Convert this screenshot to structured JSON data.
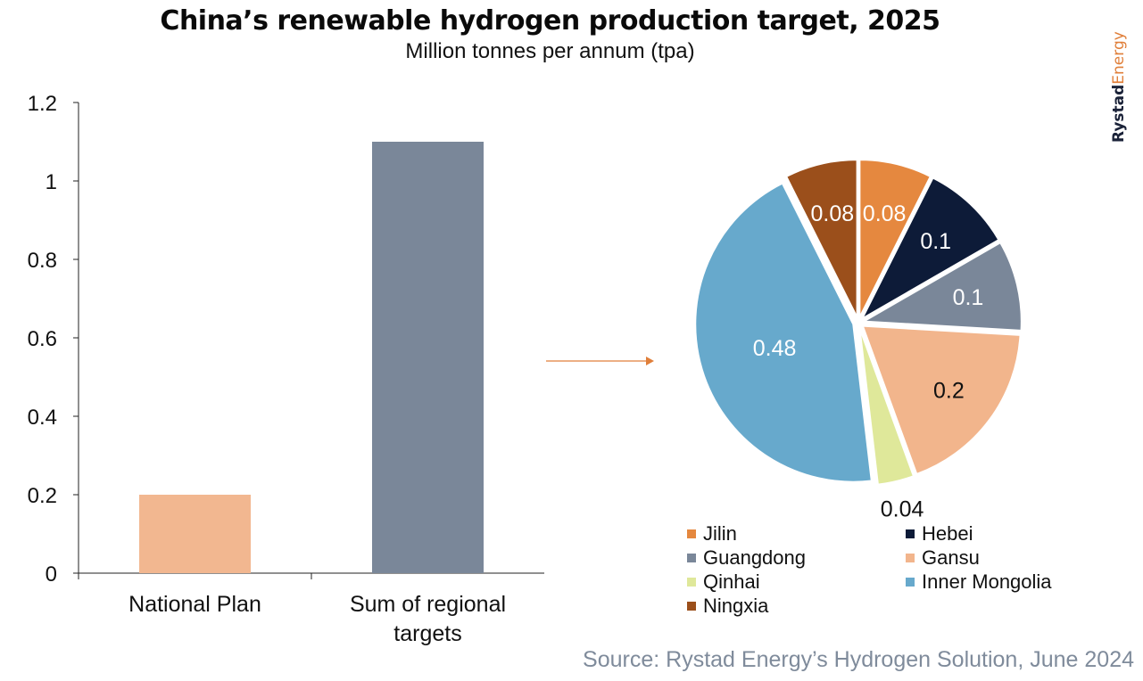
{
  "title": "China’s renewable hydrogen production target, 2025",
  "subtitle": "Million tonnes per annum (tpa)",
  "brand": {
    "part1": "Rystad",
    "part2": "Energy"
  },
  "source": "Source: Rystad Energy’s Hydrogen Solution, June 2024",
  "colors": {
    "national_plan": "#f2b790",
    "regional_sum": "#7a8799",
    "arrow": "#e07f3a",
    "axis": "#222222"
  },
  "chart_data": [
    {
      "type": "bar",
      "categories": [
        "National Plan",
        "Sum of regional targets"
      ],
      "values": [
        0.2,
        1.1
      ],
      "ylim": [
        0,
        1.2
      ],
      "yticks": [
        "0",
        "0.2",
        "0.4",
        "0.6",
        "0.8",
        "1",
        "1.2"
      ],
      "ytick_values": [
        0,
        0.2,
        0.4,
        0.6,
        0.8,
        1,
        1.2
      ],
      "xlabel": "",
      "ylabel": "",
      "grid": false
    },
    {
      "type": "pie",
      "slices": [
        {
          "label": "Jilin",
          "value": 0.08,
          "display": "0.08",
          "color": "#e5883f"
        },
        {
          "label": "Hebei",
          "value": 0.1,
          "display": "0.1",
          "color": "#0d1b38"
        },
        {
          "label": "Guangdong",
          "value": 0.1,
          "display": "0.1",
          "color": "#7a8799"
        },
        {
          "label": "Gansu",
          "value": 0.2,
          "display": "0.2",
          "color": "#f2b58c"
        },
        {
          "label": "Qinhai",
          "value": 0.04,
          "display": "0.04",
          "color": "#dfe89a"
        },
        {
          "label": "Inner Mongolia",
          "value": 0.48,
          "display": "0.48",
          "color": "#67a9cc"
        },
        {
          "label": "Ningxia",
          "value": 0.08,
          "display": "0.08",
          "color": "#9b4f1b"
        }
      ],
      "legend_position": "bottom"
    }
  ]
}
